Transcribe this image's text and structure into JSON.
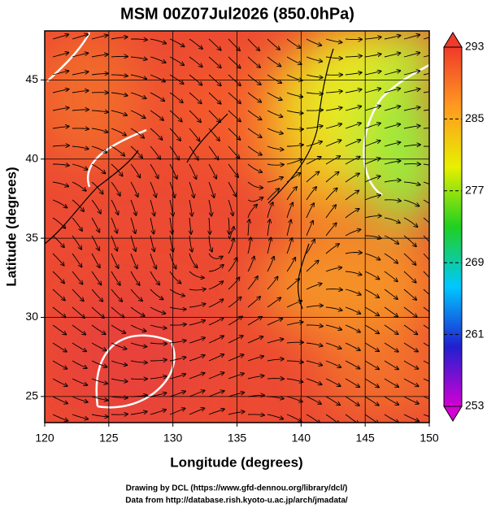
{
  "chart_data": {
    "type": "map",
    "title": "MSM 00Z07Jul2026 (850.0hPa)",
    "x_label": "Longitude (degrees)",
    "y_label": "Latitude (degrees)",
    "xlim": [
      120,
      150
    ],
    "xticks": [
      120,
      125,
      130,
      135,
      140,
      145,
      150
    ],
    "ylim": [
      23.35,
      48.1
    ],
    "yticks": [
      25,
      30,
      35,
      40,
      45
    ],
    "grid": true,
    "colorbar": {
      "lim": [
        253,
        293
      ],
      "ticks": [
        253,
        261,
        269,
        277,
        285,
        293
      ],
      "colors": [
        "#d400d4",
        "#2020d0",
        "#00c8ff",
        "#20d020",
        "#e8f000",
        "#ff9a20",
        "#f03a2a"
      ]
    },
    "footer": [
      "Drawing by DCL (https://www.gfd-dennou.org/library/dcl/)",
      "Data from http://database.rish.kyoto-u.ac.jp/arch/jmadata/"
    ]
  }
}
